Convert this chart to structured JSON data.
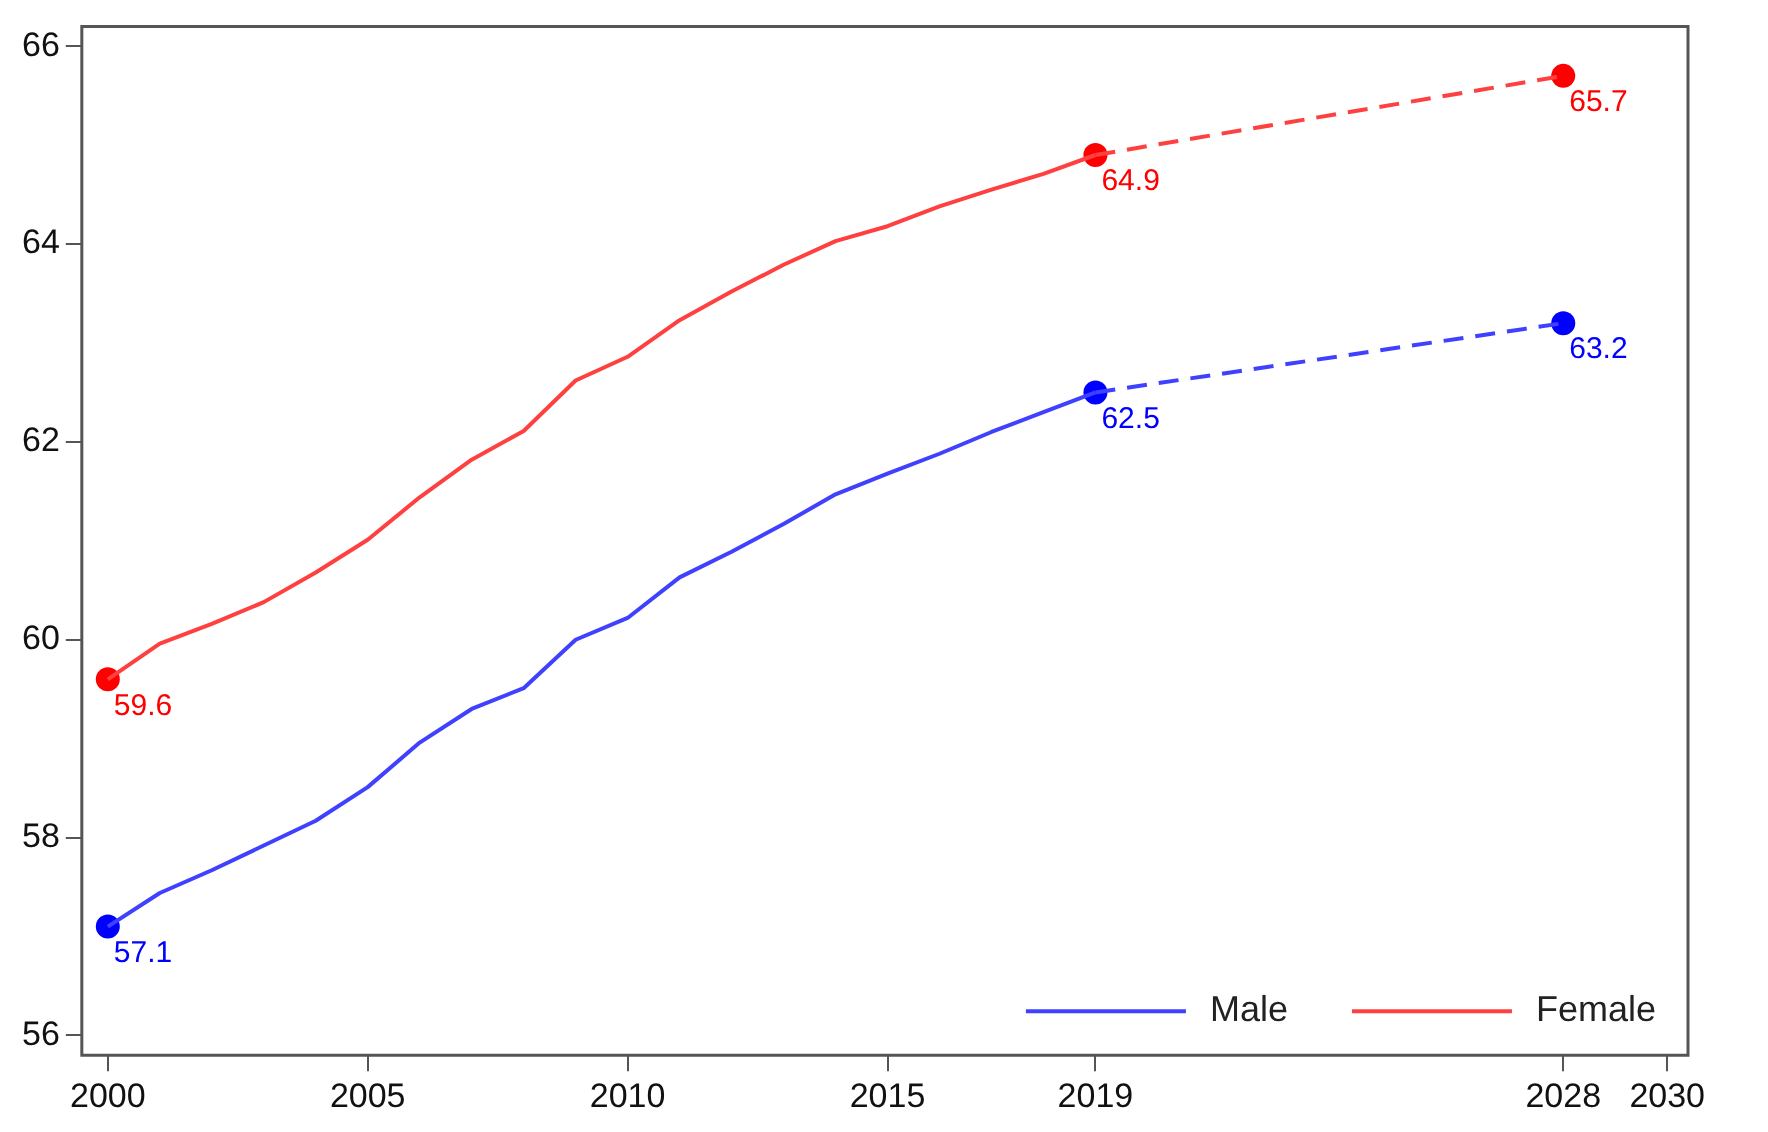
{
  "chart_data": {
    "type": "line",
    "x": [
      2000,
      2001,
      2002,
      2003,
      2004,
      2005,
      2006,
      2007,
      2008,
      2009,
      2010,
      2011,
      2012,
      2013,
      2014,
      2015,
      2016,
      2017,
      2018,
      2019
    ],
    "series": [
      {
        "name": "Male",
        "color": "#4040ff",
        "line_style": "solid",
        "marker": "none",
        "values": [
          57.1,
          57.44,
          57.67,
          57.92,
          58.17,
          58.51,
          58.96,
          59.3,
          59.51,
          60.0,
          60.22,
          60.63,
          60.89,
          61.17,
          61.47,
          61.68,
          61.88,
          62.1,
          62.3,
          62.5
        ]
      },
      {
        "name": "Female",
        "color": "#ff4040",
        "line_style": "solid",
        "marker": "none",
        "values": [
          59.6,
          59.96,
          60.16,
          60.38,
          60.68,
          61.01,
          61.44,
          61.82,
          62.11,
          62.62,
          62.86,
          63.23,
          63.52,
          63.79,
          64.03,
          64.18,
          64.38,
          64.55,
          64.71,
          64.9
        ]
      },
      {
        "color": "#4040ff",
        "line_style": "dashed",
        "marker": "none",
        "x": [
          2019,
          2028
        ],
        "values": [
          62.5,
          63.2
        ]
      },
      {
        "color": "#ff4040",
        "line_style": "dashed",
        "marker": "none",
        "x": [
          2019,
          2028
        ],
        "values": [
          64.9,
          65.7
        ]
      },
      {
        "type": "scatter",
        "color": "#0000ff",
        "marker": "circle",
        "x": [
          2000,
          2019,
          2028
        ],
        "values": [
          57.1,
          62.5,
          63.2
        ],
        "value_labels": [
          "57.1",
          "62.5",
          "63.2"
        ]
      },
      {
        "type": "scatter",
        "color": "#ff0000",
        "marker": "circle",
        "x": [
          2000,
          2019,
          2028
        ],
        "values": [
          59.6,
          64.9,
          65.7
        ],
        "value_labels": [
          "59.6",
          "64.9",
          "65.7"
        ]
      }
    ],
    "xlim": [
      1999.5,
      2030.4
    ],
    "xticks": [
      2000,
      2005,
      2010,
      2015,
      2019,
      2028,
      2030
    ],
    "ylim": [
      55.8,
      66.2
    ],
    "yticks": [
      56,
      58,
      60,
      62,
      64,
      66
    ],
    "grid": false,
    "legend": "bottom right"
  }
}
